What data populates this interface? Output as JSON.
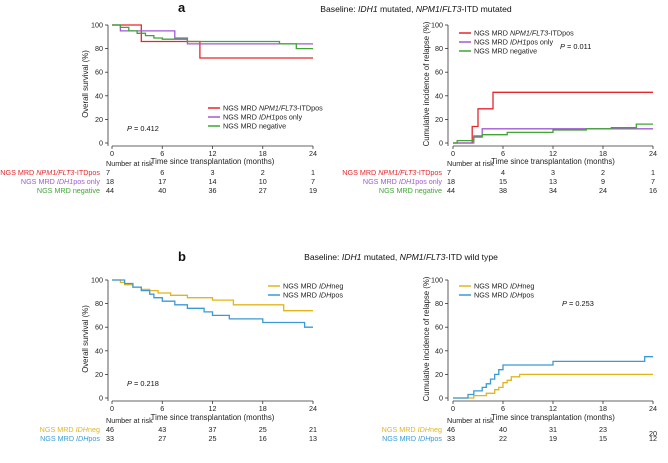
{
  "panel_a": {
    "letter": "a",
    "baseline_parts": [
      "Baseline: ",
      "IDH1",
      " mutated, ",
      "NPM1",
      "/",
      "FLT3",
      "-ITD mutated"
    ]
  },
  "panel_b": {
    "letter": "b",
    "baseline_parts": [
      "Baseline: ",
      "IDH1",
      " mutated, ",
      "NPM1",
      "/",
      "FLT3",
      "-ITD wild type"
    ]
  },
  "risk_header": "Number at risk",
  "colors": {
    "red": "#e5262b",
    "purple": "#a05ad3",
    "green": "#3fa535",
    "yellow": "#e3b51b",
    "blue": "#3b9ad6"
  },
  "chart_data": [
    {
      "id": "a_os",
      "type": "line",
      "ylabel": "Overall survival (%)",
      "xlabel": "Time since transplantation (months)",
      "xlim": [
        0,
        24
      ],
      "ylim": [
        0,
        100
      ],
      "xticks": [
        0,
        6,
        12,
        18,
        24
      ],
      "yticks": [
        0,
        20,
        40,
        60,
        80,
        100
      ],
      "pvalue": "P = 0.412",
      "legend_position": "bottom-right",
      "series": [
        {
          "name": "NGS MRD NPM1/FLT3-ITDpos",
          "name_parts": [
            "NGS MRD ",
            "NPM1/FLT3",
            "-ITDpos"
          ],
          "color_key": "red",
          "x": [
            0,
            3.5,
            3.5,
            10.5,
            10.5,
            24
          ],
          "y": [
            100,
            100,
            86,
            86,
            72,
            72
          ]
        },
        {
          "name": "NGS MRD IDH1pos only",
          "name_parts": [
            "NGS MRD ",
            "IDH1",
            "pos only"
          ],
          "color_key": "purple",
          "x": [
            0,
            1,
            1,
            7.5,
            7.5,
            9,
            9,
            24
          ],
          "y": [
            100,
            100,
            95,
            95,
            89,
            89,
            84,
            84
          ]
        },
        {
          "name": "NGS MRD negative",
          "name_parts": [
            "NGS MRD negative",
            "",
            ""
          ],
          "color_key": "green",
          "x": [
            0,
            1,
            1,
            2,
            2,
            3,
            3,
            4,
            4,
            5,
            5,
            6,
            6,
            9,
            9,
            20,
            20,
            22,
            22,
            24
          ],
          "y": [
            100,
            100,
            98,
            98,
            95,
            95,
            93,
            93,
            91,
            91,
            89,
            89,
            88,
            88,
            86,
            86,
            84,
            84,
            80,
            80
          ]
        }
      ],
      "risk_table": {
        "times": [
          0,
          6,
          12,
          18,
          24
        ],
        "rows": [
          {
            "label_parts": [
              "NGS MRD ",
              "NPM1/FLT3",
              "-ITDpos"
            ],
            "color_key": "red",
            "values": [
              "7",
              "6",
              "3",
              "2",
              "1"
            ]
          },
          {
            "label_parts": [
              "NGS MRD ",
              "IDH1",
              "pos only"
            ],
            "color_key": "purple",
            "values": [
              "18",
              "17",
              "14",
              "10",
              "7"
            ]
          },
          {
            "label_parts": [
              "NGS MRD negative",
              "",
              ""
            ],
            "color_key": "green",
            "values": [
              "44",
              "40",
              "36",
              "27",
              "19"
            ]
          }
        ]
      }
    },
    {
      "id": "a_cir",
      "type": "line",
      "ylabel": "Cumulative incidence of relapse (%)",
      "xlabel": "Time since transplantation (months)",
      "xlim": [
        0,
        24
      ],
      "ylim": [
        0,
        100
      ],
      "xticks": [
        0,
        6,
        12,
        18,
        24
      ],
      "yticks": [
        0,
        20,
        40,
        60,
        80,
        100
      ],
      "pvalue": "P = 0.011",
      "legend_position": "top-left",
      "series": [
        {
          "name": "NGS MRD NPM1/FLT3-ITDpos",
          "name_parts": [
            "NGS MRD ",
            "NPM1/FLT3",
            "-ITDpos"
          ],
          "color_key": "red",
          "x": [
            0,
            2.3,
            2.3,
            3,
            3,
            4.8,
            4.8,
            24
          ],
          "y": [
            0,
            0,
            14,
            14,
            29,
            29,
            43,
            43
          ]
        },
        {
          "name": "NGS MRD IDH1pos only",
          "name_parts": [
            "NGS MRD ",
            "IDH1",
            "pos only"
          ],
          "color_key": "purple",
          "x": [
            0,
            2.5,
            2.5,
            3.5,
            3.5,
            24
          ],
          "y": [
            0,
            0,
            6,
            6,
            12,
            12
          ]
        },
        {
          "name": "NGS MRD negative",
          "name_parts": [
            "NGS MRD negative",
            "",
            ""
          ],
          "color_key": "green",
          "x": [
            0,
            0.5,
            0.5,
            2.5,
            2.5,
            3.5,
            3.5,
            6.5,
            6.5,
            12,
            12,
            16,
            16,
            19,
            19,
            22,
            22,
            24
          ],
          "y": [
            0,
            0,
            2,
            2,
            5,
            5,
            7,
            7,
            9,
            9,
            11,
            11,
            12,
            12,
            13,
            13,
            16,
            16
          ]
        }
      ],
      "risk_table": {
        "times": [
          0,
          6,
          12,
          18,
          24
        ],
        "rows": [
          {
            "label_parts": [
              "NGS MRD ",
              "NPM1/FLT3",
              "-ITDpos"
            ],
            "color_key": "red",
            "values": [
              "7",
              "4",
              "3",
              "2",
              "1"
            ]
          },
          {
            "label_parts": [
              "NGS MRD ",
              "IDH1",
              "pos only"
            ],
            "color_key": "purple",
            "values": [
              "18",
              "15",
              "13",
              "9",
              "7"
            ]
          },
          {
            "label_parts": [
              "NGS MRD negative",
              "",
              ""
            ],
            "color_key": "green",
            "values": [
              "44",
              "38",
              "34",
              "24",
              "16"
            ]
          }
        ]
      }
    },
    {
      "id": "b_os",
      "type": "line",
      "ylabel": "Overall survival (%)",
      "xlabel": "Time since transplantation (months)",
      "xlim": [
        0,
        24
      ],
      "ylim": [
        0,
        100
      ],
      "xticks": [
        0,
        6,
        12,
        18,
        24
      ],
      "yticks": [
        0,
        20,
        40,
        60,
        80,
        100
      ],
      "pvalue": "P = 0.218",
      "legend_position": "top-right",
      "series": [
        {
          "name": "NGS MRD IDHneg",
          "name_parts": [
            "NGS MRD ",
            "IDH",
            "neg"
          ],
          "color_key": "yellow",
          "x": [
            0,
            1,
            1,
            1.5,
            1.5,
            2.5,
            2.5,
            3.5,
            3.5,
            4.5,
            4.5,
            5.5,
            5.5,
            7,
            7,
            9,
            9,
            12,
            12,
            14.5,
            14.5,
            20.5,
            20.5,
            24
          ],
          "y": [
            100,
            100,
            98,
            98,
            96,
            96,
            94,
            94,
            92,
            92,
            91,
            91,
            89,
            89,
            87,
            87,
            85,
            85,
            83,
            83,
            79,
            79,
            74,
            74
          ]
        },
        {
          "name": "NGS MRD IDHpos",
          "name_parts": [
            "NGS MRD ",
            "IDH",
            "pos"
          ],
          "color_key": "blue",
          "x": [
            0,
            1.5,
            1.5,
            2.5,
            2.5,
            3.5,
            3.5,
            4.5,
            4.5,
            5,
            5,
            6,
            6,
            7.5,
            7.5,
            9,
            9,
            11,
            11,
            12,
            12,
            14,
            14,
            18,
            18,
            23,
            23,
            24
          ],
          "y": [
            100,
            100,
            97,
            97,
            94,
            94,
            91,
            91,
            88,
            88,
            85,
            85,
            82,
            82,
            79,
            79,
            76,
            76,
            73,
            73,
            70,
            70,
            67,
            67,
            64,
            64,
            60,
            60
          ]
        }
      ],
      "risk_table": {
        "times": [
          0,
          6,
          12,
          18,
          24
        ],
        "rows": [
          {
            "label_parts": [
              "NGS MRD ",
              "IDH",
              "neg"
            ],
            "color_key": "yellow",
            "values": [
              "46",
              "43",
              "37",
              "25",
              "21"
            ]
          },
          {
            "label_parts": [
              "NGS MRD ",
              "IDH",
              "pos"
            ],
            "color_key": "blue",
            "values": [
              "33",
              "27",
              "25",
              "16",
              "13"
            ]
          }
        ]
      }
    },
    {
      "id": "b_cir",
      "type": "line",
      "ylabel": "Cumulative incidence of relapse (%)",
      "xlabel": "Time since transplantation (months)",
      "xlim": [
        0,
        24
      ],
      "ylim": [
        0,
        100
      ],
      "xticks": [
        0,
        6,
        12,
        18,
        24
      ],
      "yticks": [
        0,
        20,
        40,
        60,
        80,
        100
      ],
      "pvalue": "P = 0.253",
      "legend_position": "top-left",
      "series": [
        {
          "name": "NGS MRD IDHneg",
          "name_parts": [
            "NGS MRD ",
            "IDH",
            "neg"
          ],
          "color_key": "yellow",
          "x": [
            0,
            2.5,
            2.5,
            4,
            4,
            5,
            5,
            5.5,
            5.5,
            6,
            6,
            6.5,
            6.5,
            7,
            7,
            8,
            8,
            24
          ],
          "y": [
            0,
            0,
            2,
            2,
            4,
            4,
            7,
            7,
            9,
            9,
            13,
            13,
            15,
            15,
            18,
            18,
            20,
            20
          ]
        },
        {
          "name": "NGS MRD IDHpos",
          "name_parts": [
            "NGS MRD ",
            "IDH",
            "pos"
          ],
          "color_key": "blue",
          "x": [
            0,
            1.8,
            1.8,
            2.5,
            2.5,
            3.5,
            3.5,
            4,
            4,
            4.5,
            4.5,
            5,
            5,
            5.5,
            5.5,
            6,
            6,
            12,
            12,
            23,
            23,
            24
          ],
          "y": [
            0,
            0,
            3,
            3,
            6,
            6,
            9,
            9,
            12,
            12,
            16,
            16,
            20,
            20,
            24,
            24,
            28,
            28,
            31,
            31,
            35,
            35
          ]
        }
      ],
      "risk_table": {
        "times": [
          0,
          6,
          12,
          18,
          24
        ],
        "rows": [
          {
            "label_parts": [
              "NGS MRD ",
              "IDH",
              "neg"
            ],
            "color_key": "yellow",
            "values": [
              "46",
              "40",
              "31",
              "23",
              "20"
            ]
          },
          {
            "label_parts": [
              "NGS MRD ",
              "IDH",
              "pos"
            ],
            "color_key": "blue",
            "values": [
              "33",
              "22",
              "19",
              "15",
              "12"
            ]
          }
        ]
      }
    }
  ]
}
